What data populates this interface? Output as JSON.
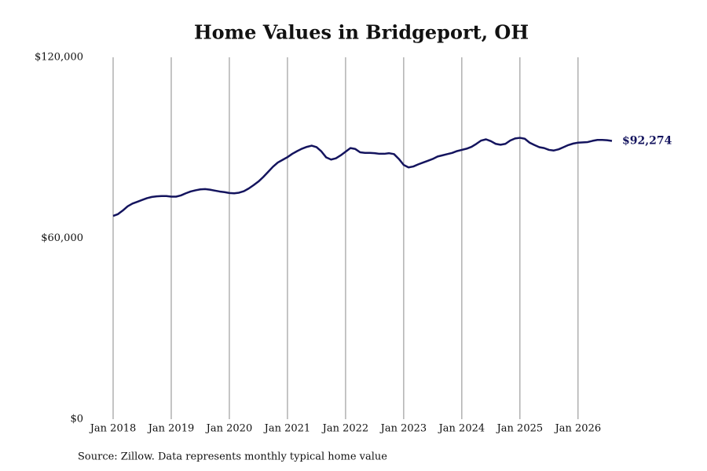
{
  "chart_data": {
    "type": "line",
    "title": "Home Values in Bridgeport, OH",
    "source": "Source: Zillow. Data represents monthly typical home value",
    "x": [
      "2018-01",
      "2018-02",
      "2018-03",
      "2018-04",
      "2018-05",
      "2018-06",
      "2018-07",
      "2018-08",
      "2018-09",
      "2018-10",
      "2018-11",
      "2018-12",
      "2019-01",
      "2019-02",
      "2019-03",
      "2019-04",
      "2019-05",
      "2019-06",
      "2019-07",
      "2019-08",
      "2019-09",
      "2019-10",
      "2019-11",
      "2019-12",
      "2020-01",
      "2020-02",
      "2020-03",
      "2020-04",
      "2020-05",
      "2020-06",
      "2020-07",
      "2020-08",
      "2020-09",
      "2020-10",
      "2020-11",
      "2020-12",
      "2021-01",
      "2021-02",
      "2021-03",
      "2021-04",
      "2021-05",
      "2021-06",
      "2021-07",
      "2021-08",
      "2021-09",
      "2021-10",
      "2021-11",
      "2021-12",
      "2022-01",
      "2022-02",
      "2022-03",
      "2022-04",
      "2022-05",
      "2022-06",
      "2022-07",
      "2022-08",
      "2022-09",
      "2022-10",
      "2022-11",
      "2022-12",
      "2023-01",
      "2023-02",
      "2023-03",
      "2023-04",
      "2023-05",
      "2023-06",
      "2023-07",
      "2023-08",
      "2023-09",
      "2023-10",
      "2023-11",
      "2023-12",
      "2024-01",
      "2024-02",
      "2024-03",
      "2024-04",
      "2024-05",
      "2024-06",
      "2024-07",
      "2024-08",
      "2024-09",
      "2024-10",
      "2024-11",
      "2024-12",
      "2025-01",
      "2025-02",
      "2025-03",
      "2025-04",
      "2025-05",
      "2025-06",
      "2025-07",
      "2025-08",
      "2025-09",
      "2025-10",
      "2025-11",
      "2025-12",
      "2026-01",
      "2026-02",
      "2026-03",
      "2026-04",
      "2026-05",
      "2026-06",
      "2026-07",
      "2026-08"
    ],
    "series": [
      {
        "name": "Home value",
        "color": "#14145e",
        "values": [
          67400,
          68000,
          69200,
          70600,
          71500,
          72100,
          72700,
          73300,
          73700,
          73900,
          74000,
          74000,
          73800,
          73800,
          74200,
          74900,
          75500,
          75900,
          76200,
          76300,
          76100,
          75800,
          75500,
          75300,
          75000,
          74900,
          75100,
          75600,
          76500,
          77600,
          78800,
          80300,
          82000,
          83700,
          85100,
          86000,
          86900,
          88000,
          88900,
          89700,
          90300,
          90700,
          90200,
          88800,
          86800,
          86100,
          86500,
          87500,
          88700,
          89900,
          89600,
          88500,
          88300,
          88300,
          88200,
          88000,
          88000,
          88200,
          87900,
          86300,
          84300,
          83500,
          83800,
          84500,
          85100,
          85700,
          86300,
          87100,
          87500,
          87900,
          88300,
          88900,
          89300,
          89700,
          90300,
          91300,
          92400,
          92800,
          92200,
          91300,
          91000,
          91300,
          92400,
          93100,
          93300,
          93000,
          91700,
          90900,
          90200,
          89900,
          89300,
          89100,
          89500,
          90200,
          90900,
          91400,
          91700,
          91800,
          91900,
          92300,
          92600,
          92600,
          92500,
          92274
        ],
        "value_labels": [
          null,
          null,
          null,
          null,
          null,
          null,
          null,
          null,
          null,
          null,
          null,
          null,
          null,
          null,
          null,
          null,
          null,
          null,
          null,
          null,
          null,
          null,
          null,
          null,
          null,
          null,
          null,
          null,
          null,
          null,
          null,
          null,
          null,
          null,
          null,
          null,
          null,
          null,
          null,
          null,
          null,
          null,
          null,
          null,
          null,
          null,
          null,
          null,
          null,
          null,
          null,
          null,
          null,
          null,
          null,
          null,
          null,
          null,
          null,
          null,
          null,
          null,
          null,
          null,
          null,
          null,
          null,
          null,
          null,
          null,
          null,
          null,
          null,
          null,
          null,
          null,
          null,
          null,
          null,
          null,
          null,
          null,
          null,
          null,
          null,
          null,
          null,
          null,
          null,
          null,
          null,
          null,
          null,
          null,
          null,
          null,
          null,
          null,
          null,
          null,
          null,
          null,
          null,
          "$92,274"
        ]
      }
    ],
    "xlim": [
      "2018-01",
      "2026-08"
    ],
    "xticks": [
      {
        "value": "2018-01",
        "label": "Jan 2018"
      },
      {
        "value": "2019-01",
        "label": "Jan 2019"
      },
      {
        "value": "2020-01",
        "label": "Jan 2020"
      },
      {
        "value": "2021-01",
        "label": "Jan 2021"
      },
      {
        "value": "2022-01",
        "label": "Jan 2022"
      },
      {
        "value": "2023-01",
        "label": "Jan 2023"
      },
      {
        "value": "2024-01",
        "label": "Jan 2024"
      },
      {
        "value": "2025-01",
        "label": "Jan 2025"
      },
      {
        "value": "2026-01",
        "label": "Jan 2026"
      }
    ],
    "ylim": [
      0,
      120000
    ],
    "yticks": [
      {
        "value": 0,
        "label": "$0"
      },
      {
        "value": 60000,
        "label": "$60,000"
      },
      {
        "value": 120000,
        "label": "$120,000"
      }
    ],
    "grid": "x"
  }
}
